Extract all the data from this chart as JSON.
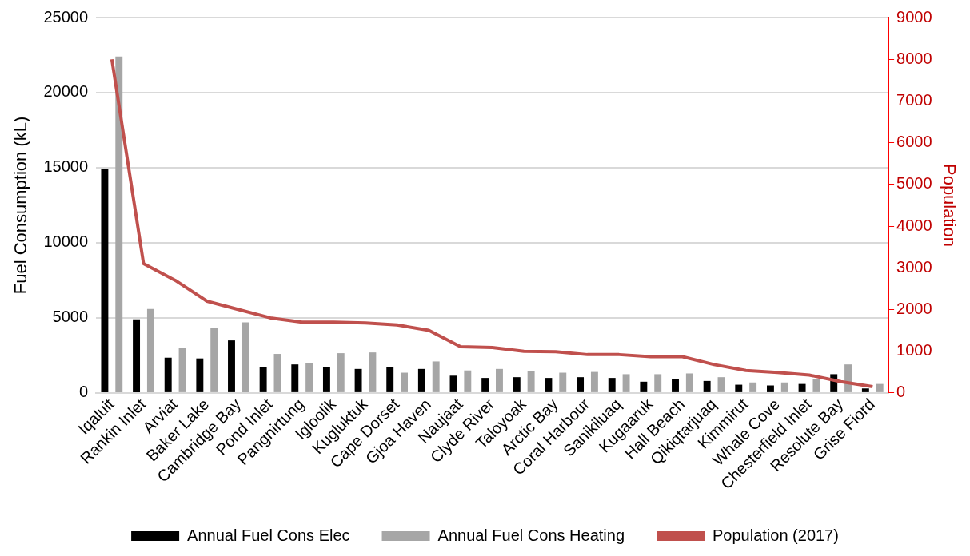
{
  "chart_data": {
    "type": "bar",
    "ylabel": "Fuel Consumption (kL)",
    "y2label": "Population",
    "categories": [
      "Iqaluit",
      "Rankin Inlet",
      "Arviat",
      "Baker Lake",
      "Cambridge Bay",
      "Pond Inlet",
      "Pangnirtung",
      "Igloolik",
      "Kugluktuk",
      "Cape Dorset",
      "Gjoa Haven",
      "Naujaat",
      "Clyde River",
      "Taloyoak",
      "Arctic Bay",
      "Coral Harbour",
      "Sanikiluaq",
      "Kugaaruk",
      "Hall Beach",
      "Qikiqtarjuaq",
      "Kimmirut",
      "Whale Cove",
      "Chesterfield Inlet",
      "Resolute Bay",
      "Grise Fiord"
    ],
    "series": [
      {
        "name": "Annual Fuel Cons Elec",
        "color": "#000000",
        "values": [
          14900,
          4900,
          2350,
          2300,
          3500,
          1750,
          1900,
          1700,
          1600,
          1700,
          1600,
          1150,
          1000,
          1050,
          1000,
          1050,
          1000,
          750,
          950,
          800,
          550,
          500,
          600,
          1250,
          300
        ]
      },
      {
        "name": "Annual Fuel Cons Heating",
        "color": "#a6a6a6",
        "values": [
          22400,
          5600,
          3000,
          4350,
          4700,
          2600,
          2000,
          2650,
          2700,
          1350,
          2100,
          1500,
          1600,
          1450,
          1350,
          1400,
          1250,
          1250,
          1300,
          1050,
          700,
          700,
          900,
          1900,
          600
        ]
      },
      {
        "name": "Population (2017)",
        "type": "line",
        "axis": "y2",
        "color": "#c0504d",
        "values": [
          8000,
          3100,
          2700,
          2200,
          2000,
          1800,
          1700,
          1700,
          1680,
          1630,
          1500,
          1110,
          1090,
          1000,
          990,
          920,
          920,
          870,
          870,
          680,
          540,
          490,
          430,
          270,
          150
        ]
      }
    ],
    "ylim": [
      0,
      25000
    ],
    "yticks": [
      0,
      5000,
      10000,
      15000,
      20000,
      25000
    ],
    "y2lim": [
      0,
      9000
    ],
    "y2ticks": [
      0,
      1000,
      2000,
      3000,
      4000,
      5000,
      6000,
      7000,
      8000,
      9000
    ],
    "grid": "y",
    "legend": "bottom",
    "marker": "none"
  }
}
